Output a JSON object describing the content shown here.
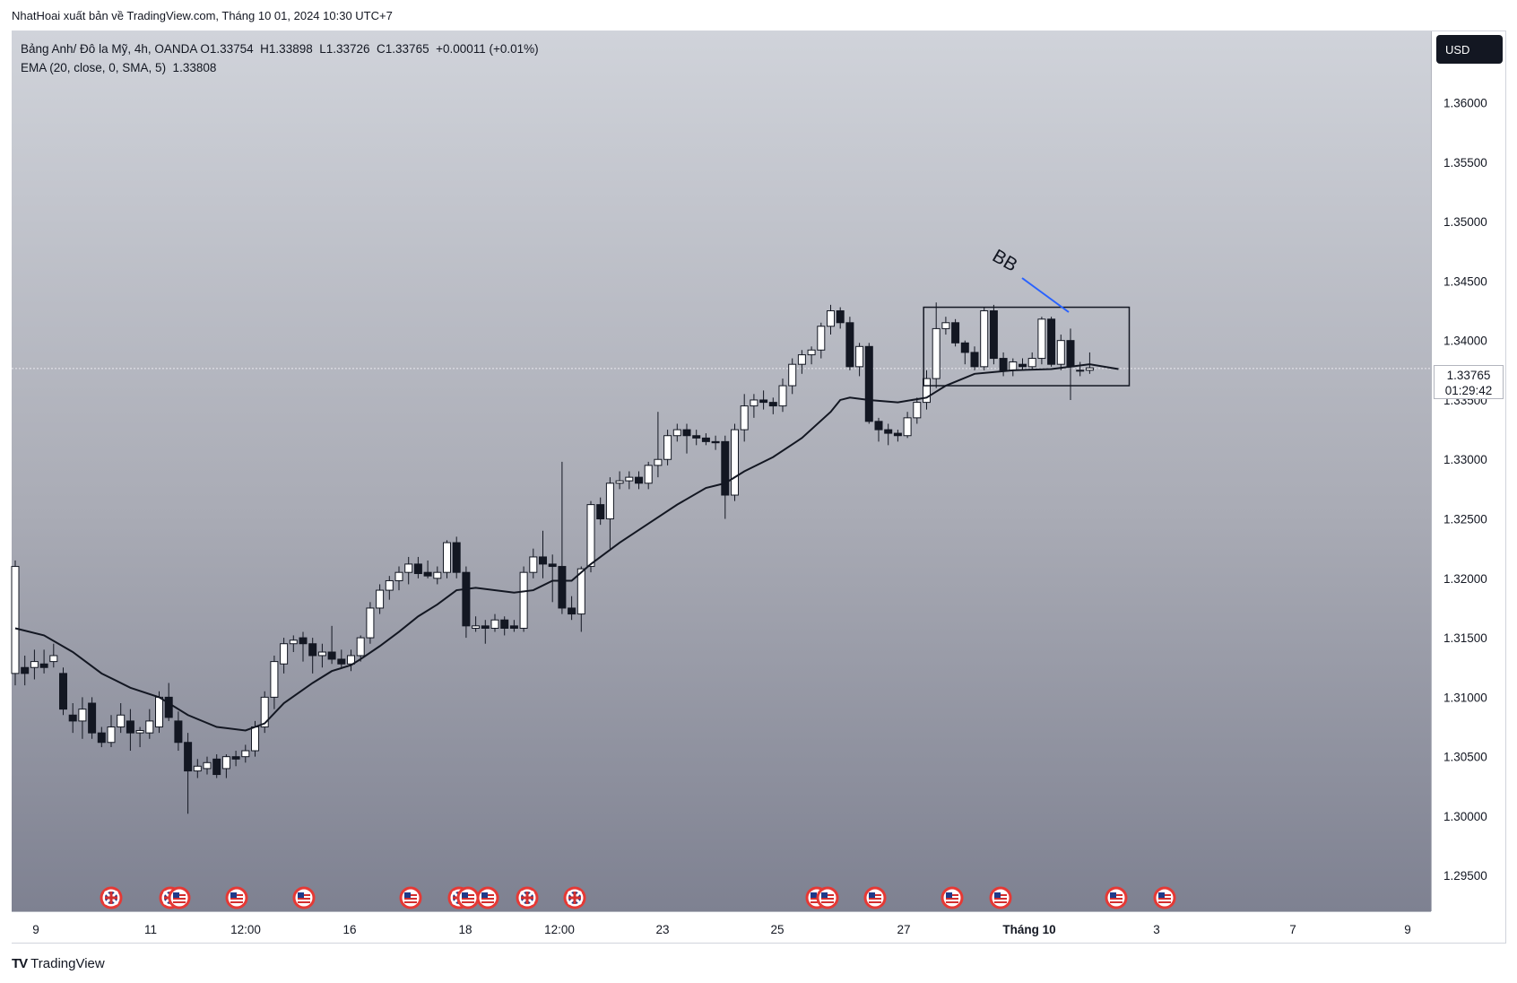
{
  "credit": "NhatHoai xuất bản về TradingView.com, Tháng 10 01, 2024 10:30 UTC+7",
  "brand": "TradingView",
  "legend": {
    "symbol": "Bảng Anh/ Đô la Mỹ, 4h, OANDA",
    "ohlc": "O1.33754  H1.33898  L1.33726  C1.33765  +0.00011 (+0.01%)",
    "indicator": "EMA (20, close, 0, SMA, 5)  1.33808"
  },
  "currency": "USD",
  "last_price": "1.33765",
  "countdown": "01:29:42",
  "annotation": "BB",
  "chart_data": {
    "type": "candlestick",
    "price_ticks": [
      "1.36000",
      "1.35500",
      "1.35000",
      "1.34500",
      "1.34000",
      "1.33500",
      "1.33000",
      "1.32500",
      "1.32000",
      "1.31500",
      "1.31000",
      "1.30500",
      "1.30000",
      "1.29500"
    ],
    "time_ticks": [
      "9",
      "11",
      "12:00",
      "16",
      "18",
      "12:00",
      "23",
      "25",
      "27",
      "Tháng 10",
      "3",
      "7",
      "9"
    ],
    "ylim": [
      1.292,
      1.366
    ],
    "candles": [
      [
        1.312,
        1.3215,
        1.311,
        1.321
      ],
      [
        1.3125,
        1.3135,
        1.311,
        1.312
      ],
      [
        1.3125,
        1.314,
        1.3115,
        1.313
      ],
      [
        1.3128,
        1.314,
        1.312,
        1.3125
      ],
      [
        1.313,
        1.3145,
        1.3125,
        1.3135
      ],
      [
        1.312,
        1.3125,
        1.3085,
        1.309
      ],
      [
        1.3085,
        1.3095,
        1.307,
        1.308
      ],
      [
        1.308,
        1.31,
        1.3065,
        1.309
      ],
      [
        1.3095,
        1.31,
        1.3065,
        1.307
      ],
      [
        1.307,
        1.3075,
        1.3058,
        1.3062
      ],
      [
        1.3062,
        1.3085,
        1.3058,
        1.3075
      ],
      [
        1.3075,
        1.3095,
        1.307,
        1.3085
      ],
      [
        1.308,
        1.309,
        1.3055,
        1.307
      ],
      [
        1.307,
        1.3075,
        1.3058,
        1.3072
      ],
      [
        1.307,
        1.309,
        1.3065,
        1.308
      ],
      [
        1.3075,
        1.3105,
        1.307,
        1.31
      ],
      [
        1.31,
        1.3112,
        1.308,
        1.3083
      ],
      [
        1.308,
        1.3088,
        1.3055,
        1.3062
      ],
      [
        1.3062,
        1.307,
        1.3002,
        1.3038
      ],
      [
        1.3038,
        1.3048,
        1.3032,
        1.3042
      ],
      [
        1.304,
        1.305,
        1.3035,
        1.3045
      ],
      [
        1.3048,
        1.3052,
        1.3032,
        1.3035
      ],
      [
        1.304,
        1.3052,
        1.3032,
        1.305
      ],
      [
        1.305,
        1.3055,
        1.3042,
        1.3048
      ],
      [
        1.305,
        1.306,
        1.3045,
        1.3055
      ],
      [
        1.3055,
        1.308,
        1.305,
        1.3075
      ],
      [
        1.3075,
        1.3105,
        1.307,
        1.31
      ],
      [
        1.31,
        1.3135,
        1.309,
        1.313
      ],
      [
        1.3128,
        1.315,
        1.312,
        1.3145
      ],
      [
        1.3145,
        1.3152,
        1.3138,
        1.3148
      ],
      [
        1.315,
        1.3155,
        1.313,
        1.3145
      ],
      [
        1.3145,
        1.315,
        1.312,
        1.3135
      ],
      [
        1.3135,
        1.3145,
        1.3125,
        1.3138
      ],
      [
        1.3138,
        1.316,
        1.3128,
        1.3132
      ],
      [
        1.3132,
        1.314,
        1.3125,
        1.3128
      ],
      [
        1.3128,
        1.314,
        1.3122,
        1.3135
      ],
      [
        1.3135,
        1.3152,
        1.313,
        1.315
      ],
      [
        1.315,
        1.318,
        1.3145,
        1.3175
      ],
      [
        1.3175,
        1.3195,
        1.317,
        1.319
      ],
      [
        1.319,
        1.3202,
        1.3182,
        1.3198
      ],
      [
        1.3198,
        1.321,
        1.319,
        1.3205
      ],
      [
        1.3205,
        1.3218,
        1.3195,
        1.3212
      ],
      [
        1.3212,
        1.3218,
        1.32,
        1.3204
      ],
      [
        1.3205,
        1.3215,
        1.32,
        1.3202
      ],
      [
        1.32,
        1.321,
        1.3195,
        1.3205
      ],
      [
        1.3205,
        1.3232,
        1.32,
        1.323
      ],
      [
        1.323,
        1.3235,
        1.32,
        1.3205
      ],
      [
        1.3205,
        1.321,
        1.315,
        1.316
      ],
      [
        1.3158,
        1.3168,
        1.3155,
        1.316
      ],
      [
        1.316,
        1.3165,
        1.3145,
        1.3158
      ],
      [
        1.3158,
        1.317,
        1.3155,
        1.3165
      ],
      [
        1.3165,
        1.3168,
        1.3152,
        1.3158
      ],
      [
        1.316,
        1.3165,
        1.3155,
        1.3158
      ],
      [
        1.3158,
        1.321,
        1.3155,
        1.3205
      ],
      [
        1.3205,
        1.3225,
        1.32,
        1.3218
      ],
      [
        1.3218,
        1.324,
        1.32,
        1.3212
      ],
      [
        1.3212,
        1.322,
        1.318,
        1.321
      ],
      [
        1.321,
        1.3298,
        1.317,
        1.3175
      ],
      [
        1.3175,
        1.3185,
        1.3165,
        1.317
      ],
      [
        1.317,
        1.321,
        1.3155,
        1.3208
      ],
      [
        1.321,
        1.3265,
        1.3205,
        1.3262
      ],
      [
        1.3262,
        1.3268,
        1.3245,
        1.325
      ],
      [
        1.325,
        1.3285,
        1.3225,
        1.328
      ],
      [
        1.328,
        1.329,
        1.3275,
        1.3282
      ],
      [
        1.3282,
        1.329,
        1.3275,
        1.3285
      ],
      [
        1.3285,
        1.329,
        1.3275,
        1.328
      ],
      [
        1.328,
        1.3298,
        1.3275,
        1.3295
      ],
      [
        1.3295,
        1.334,
        1.3285,
        1.33
      ],
      [
        1.33,
        1.3325,
        1.3295,
        1.332
      ],
      [
        1.332,
        1.333,
        1.3315,
        1.3325
      ],
      [
        1.3325,
        1.333,
        1.3305,
        1.332
      ],
      [
        1.332,
        1.3325,
        1.3312,
        1.3318
      ],
      [
        1.3318,
        1.3322,
        1.3312,
        1.3315
      ],
      [
        1.3315,
        1.332,
        1.3308,
        1.3314
      ],
      [
        1.3315,
        1.332,
        1.325,
        1.327
      ],
      [
        1.327,
        1.333,
        1.3265,
        1.3325
      ],
      [
        1.3325,
        1.3355,
        1.3315,
        1.3345
      ],
      [
        1.3345,
        1.3355,
        1.3335,
        1.335
      ],
      [
        1.335,
        1.3358,
        1.3342,
        1.3348
      ],
      [
        1.3348,
        1.3352,
        1.3338,
        1.3345
      ],
      [
        1.3345,
        1.3368,
        1.334,
        1.3362
      ],
      [
        1.3362,
        1.3385,
        1.3355,
        1.338
      ],
      [
        1.338,
        1.3392,
        1.3372,
        1.3388
      ],
      [
        1.3388,
        1.3395,
        1.338,
        1.3392
      ],
      [
        1.3392,
        1.3415,
        1.3385,
        1.3412
      ],
      [
        1.3412,
        1.343,
        1.3405,
        1.3425
      ],
      [
        1.3425,
        1.3428,
        1.341,
        1.3415
      ],
      [
        1.3415,
        1.342,
        1.3375,
        1.3378
      ],
      [
        1.3378,
        1.3398,
        1.337,
        1.3395
      ],
      [
        1.3395,
        1.3398,
        1.333,
        1.3332
      ],
      [
        1.3332,
        1.3335,
        1.3315,
        1.3325
      ],
      [
        1.3325,
        1.333,
        1.3312,
        1.3322
      ],
      [
        1.3322,
        1.3325,
        1.3315,
        1.332
      ],
      [
        1.332,
        1.334,
        1.3318,
        1.3335
      ],
      [
        1.3335,
        1.3352,
        1.333,
        1.3348
      ],
      [
        1.3348,
        1.3375,
        1.3342,
        1.3368
      ],
      [
        1.3368,
        1.3432,
        1.336,
        1.341
      ],
      [
        1.341,
        1.342,
        1.3405,
        1.3415
      ],
      [
        1.3415,
        1.3418,
        1.3395,
        1.3398
      ],
      [
        1.3398,
        1.34,
        1.338,
        1.339
      ],
      [
        1.339,
        1.3395,
        1.3375,
        1.3378
      ],
      [
        1.3378,
        1.3428,
        1.3375,
        1.3425
      ],
      [
        1.3425,
        1.343,
        1.338,
        1.3385
      ],
      [
        1.3385,
        1.339,
        1.337,
        1.3375
      ],
      [
        1.3375,
        1.3385,
        1.337,
        1.3382
      ],
      [
        1.338,
        1.3385,
        1.3375,
        1.3378
      ],
      [
        1.3378,
        1.339,
        1.3375,
        1.3385
      ],
      [
        1.3385,
        1.342,
        1.338,
        1.3418
      ],
      [
        1.3418,
        1.342,
        1.3378,
        1.338
      ],
      [
        1.338,
        1.3405,
        1.3375,
        1.34
      ],
      [
        1.34,
        1.341,
        1.335,
        1.3378
      ],
      [
        1.3375,
        1.3382,
        1.337,
        1.3375
      ],
      [
        1.3375,
        1.339,
        1.3372,
        1.3377
      ]
    ],
    "ema20": [
      [
        0,
        1.3158
      ],
      [
        3,
        1.3152
      ],
      [
        6,
        1.3138
      ],
      [
        9,
        1.312
      ],
      [
        12,
        1.3108
      ],
      [
        15,
        1.31
      ],
      [
        18,
        1.3085
      ],
      [
        21,
        1.3075
      ],
      [
        24,
        1.3072
      ],
      [
        26,
        1.3078
      ],
      [
        28,
        1.3095
      ],
      [
        31,
        1.3112
      ],
      [
        33,
        1.3122
      ],
      [
        35,
        1.3127
      ],
      [
        36,
        1.3132
      ],
      [
        38,
        1.3143
      ],
      [
        40,
        1.3155
      ],
      [
        42,
        1.3168
      ],
      [
        44,
        1.3178
      ],
      [
        46,
        1.319
      ],
      [
        48,
        1.3192
      ],
      [
        52,
        1.3188
      ],
      [
        54,
        1.319
      ],
      [
        56,
        1.3198
      ],
      [
        58,
        1.3198
      ],
      [
        60,
        1.3212
      ],
      [
        63,
        1.323
      ],
      [
        66,
        1.3246
      ],
      [
        69,
        1.3262
      ],
      [
        72,
        1.3276
      ],
      [
        74,
        1.328
      ],
      [
        76,
        1.329
      ],
      [
        79,
        1.3302
      ],
      [
        82,
        1.3318
      ],
      [
        85,
        1.334
      ],
      [
        86,
        1.335
      ],
      [
        87,
        1.3352
      ],
      [
        89,
        1.335
      ],
      [
        92,
        1.3348
      ],
      [
        95,
        1.3352
      ],
      [
        97,
        1.3362
      ],
      [
        100,
        1.3372
      ],
      [
        104,
        1.3375
      ],
      [
        108,
        1.3376
      ],
      [
        112,
        1.338
      ],
      [
        115,
        1.3376
      ]
    ],
    "range_box": [
      1.3428,
      1.3362
    ],
    "event_flags": [
      {
        "x": 124,
        "type": "gb"
      },
      {
        "x": 190,
        "type": "gb"
      },
      {
        "x": 200,
        "type": "us"
      },
      {
        "x": 264,
        "type": "us"
      },
      {
        "x": 339,
        "type": "us"
      },
      {
        "x": 458,
        "type": "us"
      },
      {
        "x": 512,
        "type": "gb"
      },
      {
        "x": 522,
        "type": "us"
      },
      {
        "x": 544,
        "type": "us"
      },
      {
        "x": 588,
        "type": "gb"
      },
      {
        "x": 641,
        "type": "gb"
      },
      {
        "x": 911,
        "type": "us"
      },
      {
        "x": 923,
        "type": "us"
      },
      {
        "x": 976,
        "type": "us"
      },
      {
        "x": 1062,
        "type": "us"
      },
      {
        "x": 1116,
        "type": "us"
      },
      {
        "x": 1245,
        "type": "us"
      },
      {
        "x": 1299,
        "type": "us"
      }
    ]
  }
}
